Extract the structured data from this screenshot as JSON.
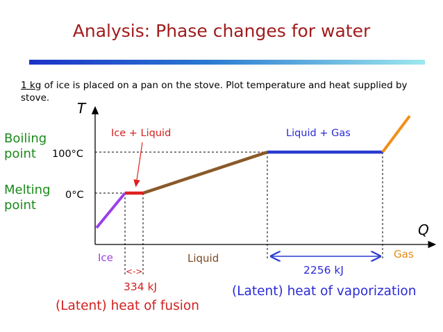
{
  "title": "Analysis: Phase changes for water",
  "intro": {
    "underlined": "1 kg",
    "rest": " of ice is placed on a pan on the stove. Plot temperature and heat supplied by stove."
  },
  "axes": {
    "y_label": "T",
    "x_label": "Q"
  },
  "left_labels": {
    "boiling_line1": "Boiling",
    "boiling_line2": "point",
    "melting_line1": "Melting",
    "melting_line2": "point"
  },
  "ticks": {
    "t100": "100°C",
    "t0": "0°C"
  },
  "phase_labels": {
    "ice_liquid": "Ice + Liquid",
    "liquid_gas": "Liquid + Gas",
    "ice": "Ice",
    "liquid": "Liquid",
    "gas": "Gas"
  },
  "annotations": {
    "fusion_energy": "334 kJ",
    "fusion_caption": "(Latent) heat of fusion",
    "vaporization_energy": "2256 kJ",
    "vaporization_caption": "(Latent) heat of vaporization"
  },
  "colors": {
    "title": "#a01c1c",
    "ice_segment": "#9b40e8",
    "fusion_segment": "#e02020",
    "liquid_segment": "#8a5a2a",
    "vaporization_segment": "#2a3ad0",
    "gas_segment": "#f0901a",
    "label_green": "#1a8a1a"
  }
}
